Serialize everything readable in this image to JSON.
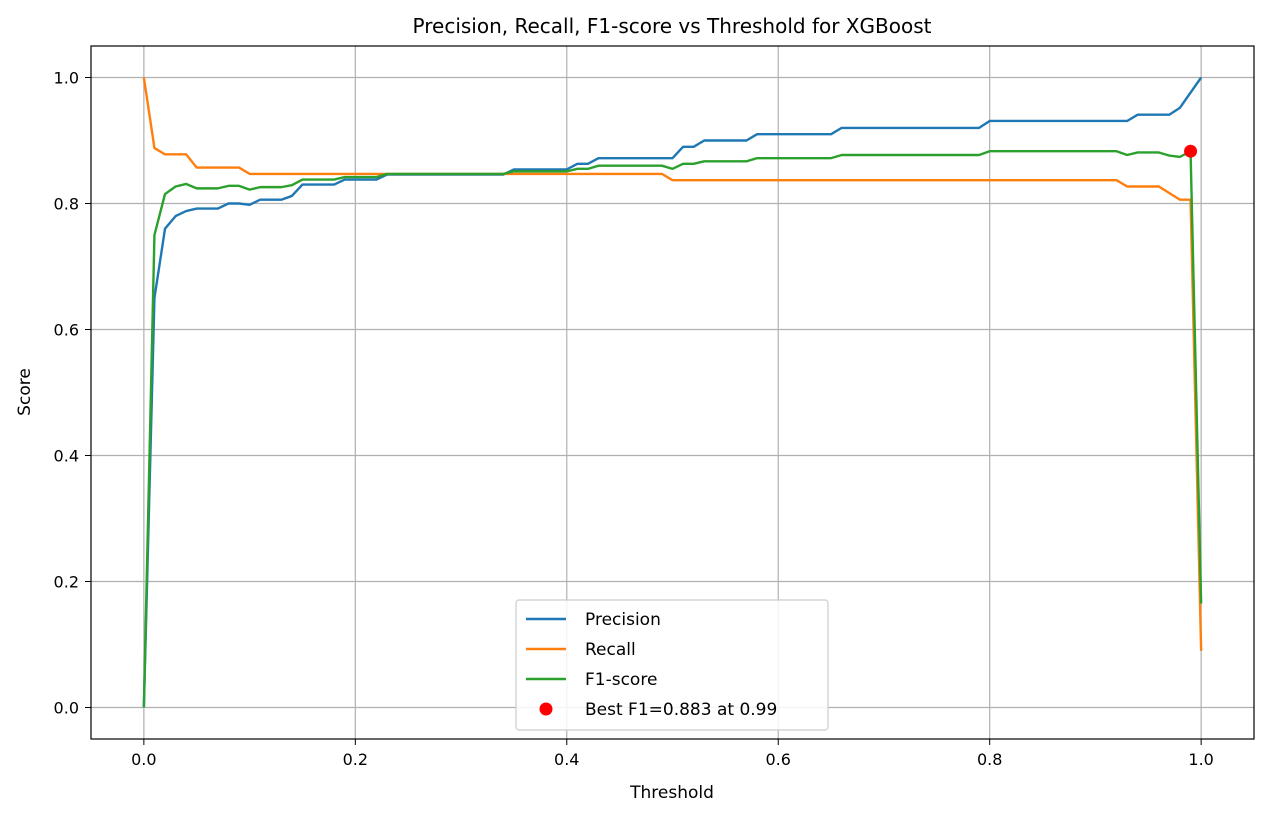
{
  "chart_data": {
    "type": "line",
    "title": "Precision, Recall, F1-score vs Threshold for XGBoost",
    "xlabel": "Threshold",
    "ylabel": "Score",
    "xlim": [
      -0.05,
      1.05
    ],
    "ylim": [
      -0.05,
      1.05
    ],
    "xticks": [
      0.0,
      0.2,
      0.4,
      0.6,
      0.8,
      1.0
    ],
    "xtick_labels": [
      "0.0",
      "0.2",
      "0.4",
      "0.6",
      "0.8",
      "1.0"
    ],
    "yticks": [
      0.0,
      0.2,
      0.4,
      0.6,
      0.8,
      1.0
    ],
    "ytick_labels": [
      "0.0",
      "0.2",
      "0.4",
      "0.6",
      "0.8",
      "1.0"
    ],
    "grid": true,
    "legend_position": "lower-center",
    "series": [
      {
        "name": "Precision",
        "color": "#1f77b4",
        "points": [
          [
            0.0,
            0.0
          ],
          [
            0.01,
            0.65
          ],
          [
            0.02,
            0.76
          ],
          [
            0.03,
            0.78
          ],
          [
            0.04,
            0.788
          ],
          [
            0.05,
            0.792
          ],
          [
            0.07,
            0.792
          ],
          [
            0.08,
            0.8
          ],
          [
            0.09,
            0.8
          ],
          [
            0.1,
            0.798
          ],
          [
            0.11,
            0.806
          ],
          [
            0.13,
            0.806
          ],
          [
            0.14,
            0.812
          ],
          [
            0.15,
            0.83
          ],
          [
            0.18,
            0.83
          ],
          [
            0.19,
            0.838
          ],
          [
            0.22,
            0.838
          ],
          [
            0.23,
            0.846
          ],
          [
            0.34,
            0.846
          ],
          [
            0.35,
            0.854
          ],
          [
            0.4,
            0.854
          ],
          [
            0.41,
            0.863
          ],
          [
            0.42,
            0.863
          ],
          [
            0.43,
            0.872
          ],
          [
            0.5,
            0.872
          ],
          [
            0.51,
            0.89
          ],
          [
            0.52,
            0.89
          ],
          [
            0.53,
            0.9
          ],
          [
            0.57,
            0.9
          ],
          [
            0.58,
            0.91
          ],
          [
            0.65,
            0.91
          ],
          [
            0.66,
            0.92
          ],
          [
            0.79,
            0.92
          ],
          [
            0.8,
            0.931
          ],
          [
            0.93,
            0.931
          ],
          [
            0.94,
            0.941
          ],
          [
            0.97,
            0.941
          ],
          [
            0.98,
            0.952
          ],
          [
            1.0,
            1.0
          ]
        ]
      },
      {
        "name": "Recall",
        "color": "#ff7f0e",
        "points": [
          [
            0.0,
            1.0
          ],
          [
            0.01,
            0.888
          ],
          [
            0.02,
            0.878
          ],
          [
            0.04,
            0.878
          ],
          [
            0.05,
            0.857
          ],
          [
            0.09,
            0.857
          ],
          [
            0.1,
            0.847
          ],
          [
            0.49,
            0.847
          ],
          [
            0.5,
            0.837
          ],
          [
            0.92,
            0.837
          ],
          [
            0.93,
            0.827
          ],
          [
            0.96,
            0.827
          ],
          [
            0.98,
            0.806
          ],
          [
            0.99,
            0.806
          ],
          [
            1.0,
            0.09
          ]
        ]
      },
      {
        "name": "F1-score",
        "color": "#2ca02c",
        "points": [
          [
            0.0,
            0.0
          ],
          [
            0.01,
            0.75
          ],
          [
            0.02,
            0.815
          ],
          [
            0.03,
            0.827
          ],
          [
            0.04,
            0.831
          ],
          [
            0.05,
            0.824
          ],
          [
            0.07,
            0.824
          ],
          [
            0.08,
            0.828
          ],
          [
            0.09,
            0.828
          ],
          [
            0.1,
            0.822
          ],
          [
            0.11,
            0.826
          ],
          [
            0.13,
            0.826
          ],
          [
            0.14,
            0.829
          ],
          [
            0.15,
            0.838
          ],
          [
            0.18,
            0.838
          ],
          [
            0.19,
            0.842
          ],
          [
            0.22,
            0.842
          ],
          [
            0.23,
            0.847
          ],
          [
            0.34,
            0.847
          ],
          [
            0.35,
            0.851
          ],
          [
            0.4,
            0.851
          ],
          [
            0.41,
            0.855
          ],
          [
            0.42,
            0.855
          ],
          [
            0.43,
            0.86
          ],
          [
            0.49,
            0.86
          ],
          [
            0.5,
            0.855
          ],
          [
            0.51,
            0.863
          ],
          [
            0.52,
            0.863
          ],
          [
            0.53,
            0.867
          ],
          [
            0.57,
            0.867
          ],
          [
            0.58,
            0.872
          ],
          [
            0.65,
            0.872
          ],
          [
            0.66,
            0.877
          ],
          [
            0.79,
            0.877
          ],
          [
            0.8,
            0.883
          ],
          [
            0.92,
            0.883
          ],
          [
            0.93,
            0.877
          ],
          [
            0.94,
            0.881
          ],
          [
            0.96,
            0.881
          ],
          [
            0.97,
            0.876
          ],
          [
            0.98,
            0.874
          ],
          [
            0.99,
            0.883
          ],
          [
            1.0,
            0.165
          ]
        ]
      }
    ],
    "highlight": {
      "name": "Best F1=0.883 at 0.99",
      "color": "#ff0000",
      "x": 0.99,
      "y": 0.883
    }
  }
}
